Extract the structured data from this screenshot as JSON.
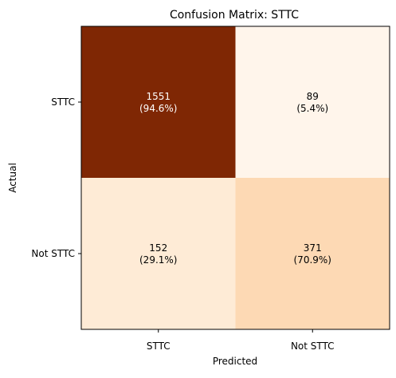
{
  "chart_data": {
    "type": "heatmap",
    "title": "Confusion Matrix: STTC",
    "xlabel": "Predicted",
    "ylabel": "Actual",
    "x_categories": [
      "STTC",
      "Not STTC"
    ],
    "y_categories": [
      "STTC",
      "Not STTC"
    ],
    "values": [
      [
        1551,
        89
      ],
      [
        152,
        371
      ]
    ],
    "percent_labels": [
      [
        "(94.6%)",
        "(5.4%)"
      ],
      [
        "(29.1%)",
        "(70.9%)"
      ]
    ],
    "row_fractions": [
      [
        0.946,
        0.054
      ],
      [
        0.291,
        0.709
      ]
    ],
    "colormap": "oranges",
    "cell_colors": [
      [
        "#7f2704",
        "#fff5eb"
      ],
      [
        "#feebd6",
        "#fdd9b4"
      ]
    ],
    "text_colors": [
      [
        "#ffffff",
        "#000000"
      ],
      [
        "#000000",
        "#000000"
      ]
    ],
    "grid": false,
    "legend": "none"
  }
}
